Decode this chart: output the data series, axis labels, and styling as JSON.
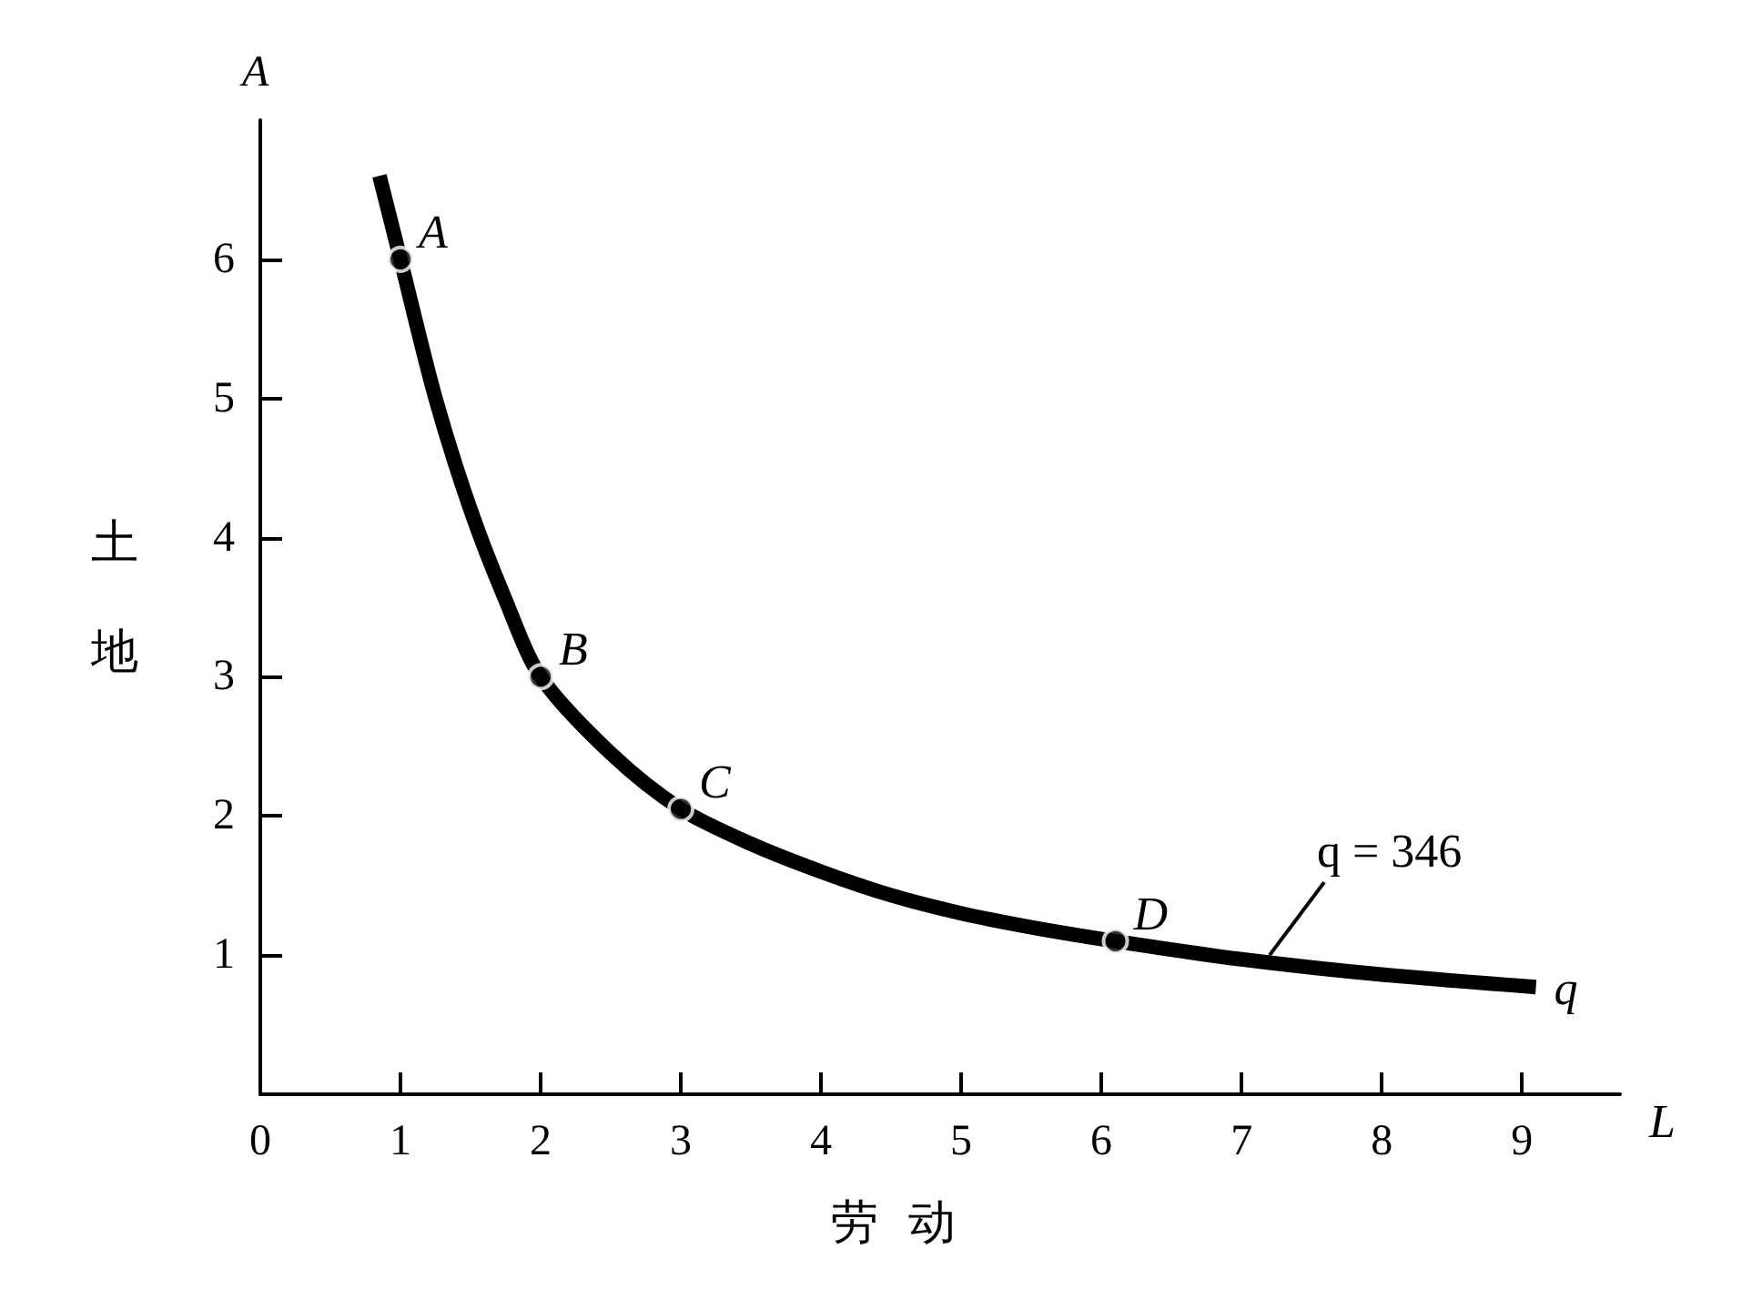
{
  "chart_data": {
    "type": "line",
    "xlabel": "劳动",
    "ylabel": "土地",
    "xlim": [
      0,
      9.7
    ],
    "xticks": [
      0,
      1,
      2,
      3,
      4,
      5,
      6,
      7,
      8,
      9
    ],
    "ylim": [
      0,
      7
    ],
    "yticks": [
      1,
      2,
      3,
      4,
      5,
      6
    ],
    "grid": false,
    "series": [
      {
        "type": "line",
        "color": "#000000",
        "marker": "none",
        "line_style": "solid",
        "x": [
          0.85,
          1,
          1.25,
          1.5,
          1.75,
          2,
          2.5,
          3,
          3.5,
          4,
          4.5,
          5,
          5.5,
          6.1,
          7,
          8,
          9.1
        ],
        "values": [
          6.6,
          6,
          5,
          4.2,
          3.55,
          3,
          2.45,
          2.05,
          1.8,
          1.6,
          1.43,
          1.3,
          1.2,
          1.1,
          0.97,
          0.86,
          0.77
        ]
      },
      {
        "type": "scatter",
        "color": "#000000",
        "marker": "circle",
        "x": [
          1,
          2,
          3,
          6.1
        ],
        "values": [
          6,
          3,
          2.05,
          1.1
        ]
      }
    ],
    "annotations": [
      {
        "text": "A",
        "x": 1,
        "y": 6
      },
      {
        "text": "B",
        "x": 2,
        "y": 3
      },
      {
        "text": "C",
        "x": 3,
        "y": 2.05
      },
      {
        "text": "D",
        "x": 6.1,
        "y": 1.1
      },
      {
        "text": "q = 346",
        "x": 7.2,
        "y": 1.0
      },
      {
        "text": "q",
        "x": 9.1,
        "y": 0.77
      },
      "A",
      "L"
    ]
  }
}
